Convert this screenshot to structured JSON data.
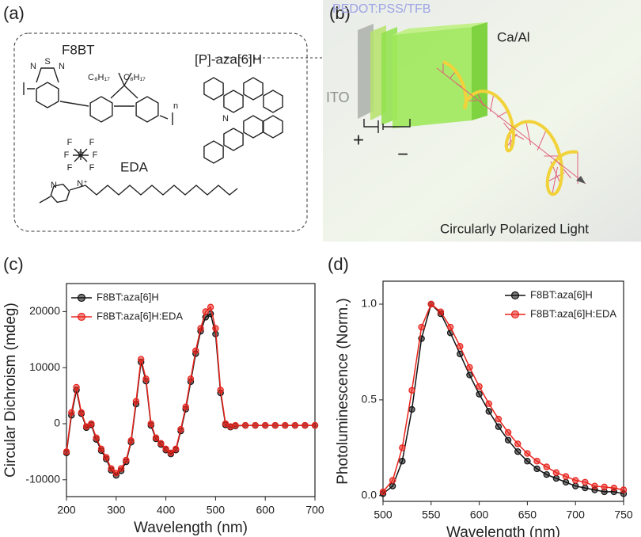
{
  "panels": {
    "a": {
      "label": "(a)",
      "molecules": [
        "F8BT",
        "[P]-aza[6]H",
        "EDA"
      ],
      "atoms": [
        "N",
        "S",
        "N",
        "C₈H₁₇",
        "C₈H₁₇",
        "n",
        "N",
        "F",
        "F",
        "F",
        "F",
        "F",
        "F",
        "P",
        "N⁺",
        "N"
      ]
    },
    "b": {
      "label": "(b)",
      "layers": [
        "PEDOT:PSS/TFB",
        "Ca/Al",
        "ITO"
      ],
      "plus": "+",
      "minus": "−",
      "caption": "Circularly Polarized Light"
    },
    "c": {
      "label": "(c)"
    },
    "d": {
      "label": "(d)"
    }
  },
  "chart_data": [
    {
      "type": "line",
      "x_label": "Wavelength (nm)",
      "y_label": "Circular Dichroism (mdeg)",
      "x": [
        200,
        210,
        220,
        230,
        240,
        250,
        260,
        270,
        280,
        290,
        300,
        310,
        320,
        330,
        340,
        350,
        360,
        370,
        380,
        390,
        400,
        410,
        420,
        430,
        440,
        450,
        460,
        470,
        480,
        490,
        500,
        510,
        520,
        530,
        540,
        560,
        580,
        600,
        620,
        640,
        660,
        680,
        700
      ],
      "series": [
        {
          "name": "F8BT:aza[6]H",
          "color": "#111111",
          "values": [
            -5200,
            1500,
            6000,
            1800,
            -700,
            -200,
            -2800,
            -4800,
            -6300,
            -8300,
            -9200,
            -8400,
            -6800,
            -3300,
            3500,
            11000,
            7600,
            -300,
            -2700,
            -3700,
            -4700,
            -5400,
            -4700,
            -1300,
            2600,
            7500,
            12500,
            16500,
            19000,
            19600,
            16000,
            5500,
            -200,
            -600,
            -400,
            -300,
            -300,
            -300,
            -300,
            -300,
            -300,
            -300,
            -300
          ]
        },
        {
          "name": "F8BT:aza[6]H:EDA",
          "color": "#e8231c",
          "values": [
            -5000,
            2000,
            6500,
            2000,
            -500,
            0,
            -2500,
            -4500,
            -6000,
            -8000,
            -8800,
            -8000,
            -6500,
            -3000,
            4000,
            11500,
            8000,
            0,
            -2500,
            -3500,
            -4500,
            -5200,
            -4500,
            -1000,
            3000,
            8000,
            13000,
            17000,
            20000,
            20800,
            17000,
            6000,
            0,
            -500,
            -300,
            -300,
            -300,
            -300,
            -300,
            -300,
            -300,
            -300,
            -300
          ]
        }
      ],
      "xlim": [
        200,
        700
      ],
      "xticks": [
        200,
        300,
        400,
        500,
        600,
        700
      ],
      "ylim": [
        -13000,
        25000
      ],
      "yticks": [
        -10000,
        0,
        10000,
        20000
      ],
      "legend": "upper left"
    },
    {
      "type": "line",
      "x_label": "Wavelength (nm)",
      "y_label": "Photoluminescence (Norm.)",
      "x": [
        500,
        510,
        520,
        530,
        540,
        550,
        560,
        570,
        580,
        590,
        600,
        610,
        620,
        630,
        640,
        650,
        660,
        670,
        680,
        690,
        700,
        710,
        720,
        730,
        740,
        750
      ],
      "series": [
        {
          "name": "F8BT:aza[6]H",
          "color": "#111111",
          "values": [
            0.01,
            0.05,
            0.18,
            0.45,
            0.82,
            1.0,
            0.95,
            0.85,
            0.74,
            0.63,
            0.53,
            0.44,
            0.36,
            0.29,
            0.23,
            0.18,
            0.14,
            0.11,
            0.09,
            0.07,
            0.05,
            0.04,
            0.03,
            0.02,
            0.02,
            0.01
          ]
        },
        {
          "name": "F8BT:aza[6]H:EDA",
          "color": "#e8231c",
          "values": [
            0.02,
            0.08,
            0.25,
            0.55,
            0.88,
            1.0,
            0.96,
            0.88,
            0.78,
            0.67,
            0.57,
            0.48,
            0.4,
            0.33,
            0.27,
            0.22,
            0.18,
            0.15,
            0.12,
            0.1,
            0.08,
            0.07,
            0.05,
            0.045,
            0.04,
            0.03
          ]
        }
      ],
      "xlim": [
        500,
        750
      ],
      "xticks": [
        500,
        550,
        600,
        650,
        700,
        750
      ],
      "ylim": [
        -0.03,
        1.12
      ],
      "yticks": [
        {
          "value": 0,
          "label": "0.0"
        },
        {
          "value": 0.5,
          "label": "0.5"
        },
        {
          "value": 1,
          "label": "1.0"
        }
      ],
      "legend": "upper right"
    }
  ]
}
